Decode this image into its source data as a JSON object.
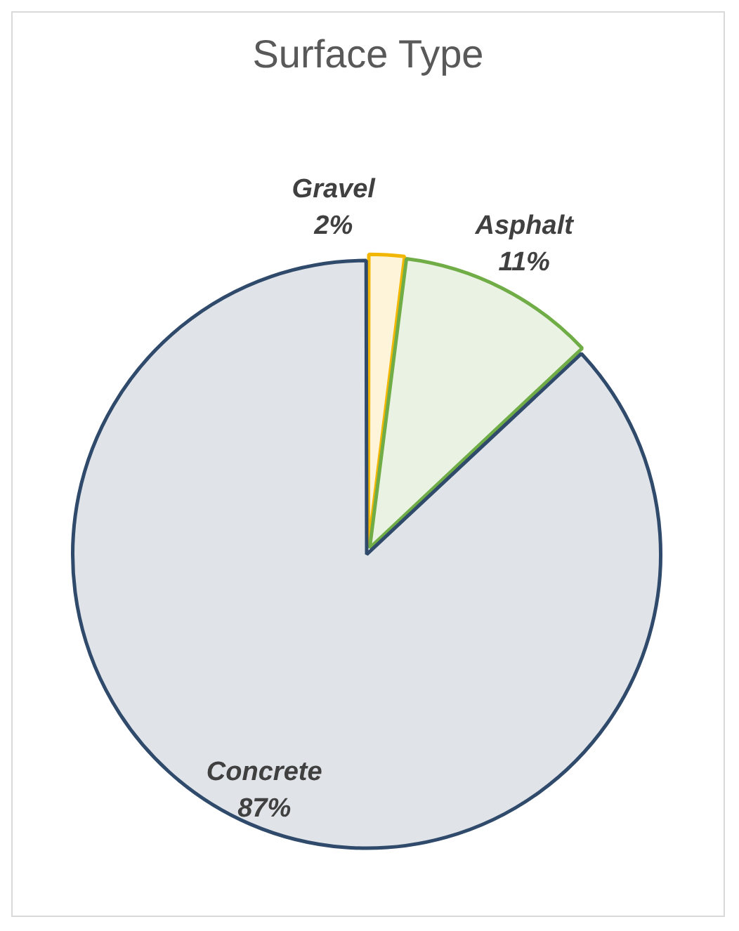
{
  "chart_data": {
    "type": "pie",
    "title": "Surface Type",
    "categories": [
      "Gravel",
      "Asphalt",
      "Concrete"
    ],
    "values": [
      2,
      11,
      87
    ],
    "value_labels": [
      "2%",
      "11%",
      "87%"
    ],
    "colors": [
      "#f2b705",
      "#70ad47",
      "#2f4a6b"
    ],
    "legend": false
  }
}
